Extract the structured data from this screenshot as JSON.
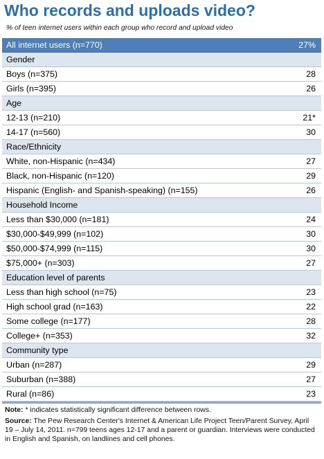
{
  "title": "Who records and uploads video?",
  "subtitle": "% of teen internet users within each group who record and upload video",
  "chart_data": {
    "type": "table",
    "title": "Who records and uploads video?",
    "subtitle": "% of teen internet users within each group who record and upload video",
    "rows": [
      {
        "kind": "all",
        "label": "All internet users (n=770)",
        "value": "27%"
      },
      {
        "kind": "header",
        "label": "Gender"
      },
      {
        "kind": "data",
        "label": "Boys (n=375)",
        "value": "28"
      },
      {
        "kind": "data",
        "label": "Girls (n=395)",
        "value": "26"
      },
      {
        "kind": "header",
        "label": "Age"
      },
      {
        "kind": "data",
        "label": "12-13 (n=210)",
        "value": "21*"
      },
      {
        "kind": "data",
        "label": "14-17 (n=560)",
        "value": "30"
      },
      {
        "kind": "header",
        "label": "Race/Ethnicity"
      },
      {
        "kind": "data",
        "label": "White, non-Hispanic (n=434)",
        "value": "27"
      },
      {
        "kind": "data",
        "label": "Black, non-Hispanic (n=120)",
        "value": "29"
      },
      {
        "kind": "data",
        "label": "Hispanic (English- and Spanish-speaking) (n=155)",
        "value": "26"
      },
      {
        "kind": "header",
        "label": "Household Income"
      },
      {
        "kind": "data",
        "label": "Less than $30,000 (n=181)",
        "value": "24"
      },
      {
        "kind": "data",
        "label": "$30,000-$49,999 (n=102)",
        "value": "30"
      },
      {
        "kind": "data",
        "label": "$50,000-$74,999 (n=115)",
        "value": "30"
      },
      {
        "kind": "data",
        "label": "$75,000+ (n=303)",
        "value": "27"
      },
      {
        "kind": "header",
        "label": "Education level of parents"
      },
      {
        "kind": "data",
        "label": "Less than high school (n=75)",
        "value": "23"
      },
      {
        "kind": "data",
        "label": "High school grad (n=163)",
        "value": "22"
      },
      {
        "kind": "data",
        "label": "Some college (n=177)",
        "value": "28"
      },
      {
        "kind": "data",
        "label": "College+ (n=353)",
        "value": "32"
      },
      {
        "kind": "header",
        "label": "Community type"
      },
      {
        "kind": "data",
        "label": "Urban (n=287)",
        "value": "29"
      },
      {
        "kind": "data",
        "label": "Suburban (n=388)",
        "value": "27"
      },
      {
        "kind": "data",
        "label": "Rural (n=86)",
        "value": "23"
      }
    ]
  },
  "notes": {
    "note_label": "Note:",
    "note_text": " * indicates statistically significant difference between rows.",
    "source_label": "Source:",
    "source_text": " The Pew Research Center's Internet & American Life Project Teen/Parent Survey, April 19 – July 14, 2011. n=799 teens ages 12-17 and a parent or guardian. Interviews were conducted in English and Spanish, on landlines and cell phones."
  },
  "colors": {
    "title": "#2f6fa7",
    "all_row_bg": "#4e7fb8",
    "header_row_bg": "#dde6ef",
    "row_border": "#b7c7d9"
  }
}
